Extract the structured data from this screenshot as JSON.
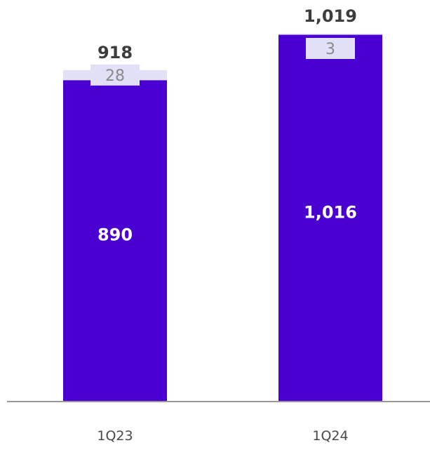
{
  "chart_data": {
    "type": "bar",
    "stacked": true,
    "categories": [
      "1Q23",
      "1Q24"
    ],
    "series": [
      {
        "values": [
          890,
          1016
        ],
        "color": "#4a00d0"
      },
      {
        "values": [
          28,
          3
        ],
        "color": "#e2e0f7"
      }
    ],
    "totals": [
      "918",
      "1,019"
    ],
    "data_labels": {
      "bottom": [
        "890",
        "1,016"
      ],
      "top": [
        "28",
        "3"
      ]
    },
    "ylim": [
      0,
      1019
    ],
    "legend": "none",
    "grid": false,
    "colors": {
      "top_label_text": "#8a8a8a",
      "total_text": "#3d3d3d",
      "axis": "#777777"
    }
  }
}
